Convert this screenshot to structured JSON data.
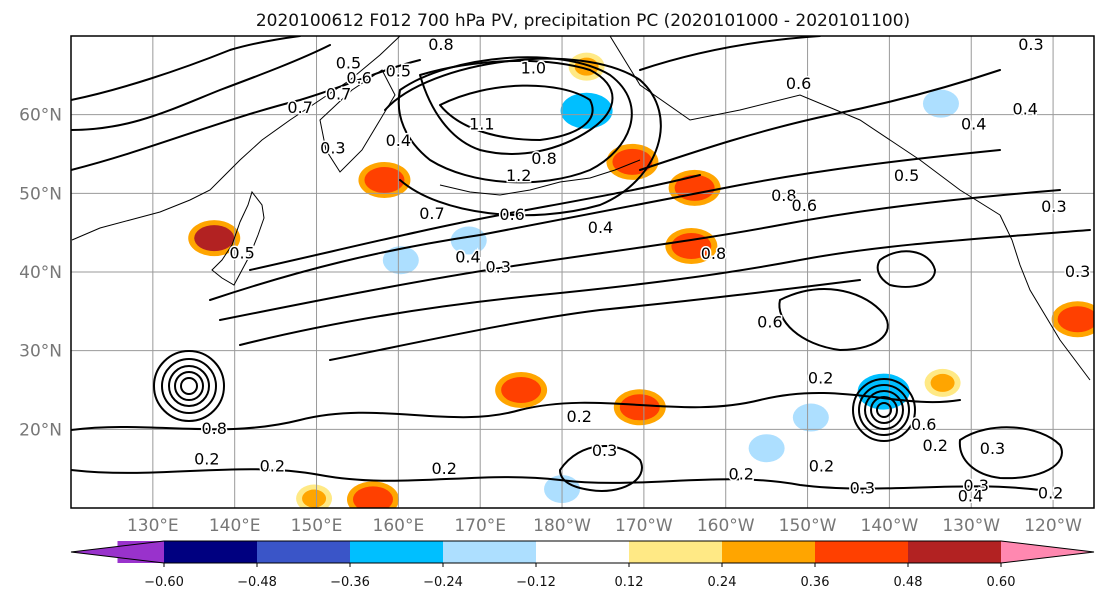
{
  "chart_data": {
    "type": "heatmap",
    "title": "2020100612 F012 700 hPa PV, precipitation PC (2020101000 - 2020101100)",
    "map": {
      "lon_range_east": [
        120,
        245
      ],
      "lat_range": [
        10,
        70
      ],
      "grid": true,
      "lon_ticks": [
        "130°E",
        "140°E",
        "150°E",
        "160°E",
        "170°E",
        "180°W",
        "170°W",
        "160°W",
        "150°W",
        "140°W",
        "130°W",
        "120°W"
      ],
      "lon_tick_values": [
        130,
        140,
        150,
        160,
        170,
        180,
        190,
        200,
        210,
        220,
        230,
        240
      ],
      "lat_ticks": [
        "20°N",
        "30°N",
        "40°N",
        "50°N",
        "60°N"
      ],
      "lat_tick_values": [
        20,
        30,
        40,
        50,
        60
      ]
    },
    "colorbar": {
      "orientation": "horizontal",
      "placement": "bottom",
      "extend": "both",
      "boundaries": [
        -0.6,
        -0.48,
        -0.36,
        -0.24,
        -0.12,
        0.12,
        0.24,
        0.36,
        0.48,
        0.6
      ],
      "tick_labels": [
        "−0.60",
        "−0.48",
        "−0.36",
        "−0.24",
        "−0.12",
        "0.12",
        "0.24",
        "0.36",
        "0.48",
        "0.60"
      ],
      "colors": [
        "#9932CC",
        "#000080",
        "#3A55C8",
        "#00BFFF",
        "#ADDFFF",
        "#FFFFFF",
        "#FFE985",
        "#FFA500",
        "#FF4000",
        "#B22222",
        "#FF88B0"
      ]
    },
    "contour_labels": [
      {
        "text": "0.7",
        "lon": 152.7,
        "lat": 62.7
      },
      {
        "text": "0.6",
        "lon": 155.2,
        "lat": 64.7
      },
      {
        "text": "0.5",
        "lon": 153.9,
        "lat": 66.6
      },
      {
        "text": "0.5",
        "lon": 160.0,
        "lat": 65.6
      },
      {
        "text": "0.3",
        "lon": 152.0,
        "lat": 55.8
      },
      {
        "text": "0.4",
        "lon": 160.0,
        "lat": 56.8
      },
      {
        "text": "0.8",
        "lon": 165.2,
        "lat": 69.0
      },
      {
        "text": "0.7",
        "lon": 148.0,
        "lat": 61.0
      },
      {
        "text": "1.0",
        "lon": 176.5,
        "lat": 66.0
      },
      {
        "text": "1.1",
        "lon": 170.2,
        "lat": 58.9
      },
      {
        "text": "1.2",
        "lon": 174.7,
        "lat": 52.3
      },
      {
        "text": "0.8",
        "lon": 177.8,
        "lat": 54.5
      },
      {
        "text": "0.6",
        "lon": 208.9,
        "lat": 64.0
      },
      {
        "text": "0.7",
        "lon": 164.1,
        "lat": 47.5
      },
      {
        "text": "0.6",
        "lon": 173.9,
        "lat": 47.4
      },
      {
        "text": "0.4",
        "lon": 168.5,
        "lat": 42.0
      },
      {
        "text": "0.3",
        "lon": 172.2,
        "lat": 40.7
      },
      {
        "text": "0.4",
        "lon": 184.7,
        "lat": 45.7
      },
      {
        "text": "0.5",
        "lon": 140.9,
        "lat": 42.5
      },
      {
        "text": "0.8",
        "lon": 198.5,
        "lat": 42.4
      },
      {
        "text": "0.8",
        "lon": 207.1,
        "lat": 49.8
      },
      {
        "text": "0.6",
        "lon": 209.6,
        "lat": 48.5
      },
      {
        "text": "0.6",
        "lon": 205.4,
        "lat": 33.7
      },
      {
        "text": "0.5",
        "lon": 222.1,
        "lat": 52.3
      },
      {
        "text": "0.4",
        "lon": 230.3,
        "lat": 58.9
      },
      {
        "text": "0.4",
        "lon": 236.6,
        "lat": 60.8
      },
      {
        "text": "0.3",
        "lon": 237.3,
        "lat": 69.0
      },
      {
        "text": "0.3",
        "lon": 240.1,
        "lat": 48.4
      },
      {
        "text": "0.3",
        "lon": 243.0,
        "lat": 40.1
      },
      {
        "text": "0.2",
        "lon": 211.6,
        "lat": 26.6
      },
      {
        "text": "0.2",
        "lon": 182.1,
        "lat": 21.7
      },
      {
        "text": "0.3",
        "lon": 185.2,
        "lat": 17.4
      },
      {
        "text": "0.2",
        "lon": 136.6,
        "lat": 16.3
      },
      {
        "text": "0.2",
        "lon": 144.6,
        "lat": 15.4
      },
      {
        "text": "0.2",
        "lon": 165.6,
        "lat": 15.1
      },
      {
        "text": "0.2",
        "lon": 201.9,
        "lat": 14.4
      },
      {
        "text": "0.2",
        "lon": 211.7,
        "lat": 15.4
      },
      {
        "text": "0.3",
        "lon": 216.7,
        "lat": 12.6
      },
      {
        "text": "0.2",
        "lon": 225.6,
        "lat": 18.0
      },
      {
        "text": "0.3",
        "lon": 232.6,
        "lat": 17.6
      },
      {
        "text": "0.3",
        "lon": 230.6,
        "lat": 12.9
      },
      {
        "text": "0.4",
        "lon": 229.9,
        "lat": 11.6
      },
      {
        "text": "0.2",
        "lon": 239.7,
        "lat": 12.0
      },
      {
        "text": "0.8",
        "lon": 137.5,
        "lat": 20.2
      },
      {
        "text": "0.6",
        "lon": 224.2,
        "lat": 20.7
      }
    ],
    "precip_patches": [
      {
        "lon": 183.0,
        "lat": 60.5,
        "value": -0.36
      },
      {
        "lon": 188.6,
        "lat": 54.0,
        "value": 0.36
      },
      {
        "lon": 219.3,
        "lat": 24.8,
        "value": -0.36
      },
      {
        "lon": 196.2,
        "lat": 50.7,
        "value": 0.36
      },
      {
        "lon": 195.8,
        "lat": 43.3,
        "value": 0.36
      },
      {
        "lon": 158.3,
        "lat": 51.7,
        "value": 0.36
      },
      {
        "lon": 137.5,
        "lat": 44.3,
        "value": 0.48
      },
      {
        "lon": 175.0,
        "lat": 25.0,
        "value": 0.36
      },
      {
        "lon": 160.3,
        "lat": 41.5,
        "value": -0.24
      },
      {
        "lon": 168.6,
        "lat": 44.0,
        "value": -0.24
      },
      {
        "lon": 210.4,
        "lat": 21.5,
        "value": -0.24
      },
      {
        "lon": 189.5,
        "lat": 22.8,
        "value": 0.36
      },
      {
        "lon": 226.3,
        "lat": 61.4,
        "value": -0.24
      },
      {
        "lon": 243.0,
        "lat": 34.0,
        "value": 0.36
      },
      {
        "lon": 149.7,
        "lat": 11.2,
        "value": 0.24
      },
      {
        "lon": 156.9,
        "lat": 11.1,
        "value": 0.36
      },
      {
        "lon": 226.5,
        "lat": 25.9,
        "value": 0.24
      },
      {
        "lon": 180.0,
        "lat": 12.4,
        "value": -0.24
      },
      {
        "lon": 205.0,
        "lat": 17.6,
        "value": -0.24
      },
      {
        "lon": 183.0,
        "lat": 66.1,
        "value": 0.24
      }
    ]
  }
}
